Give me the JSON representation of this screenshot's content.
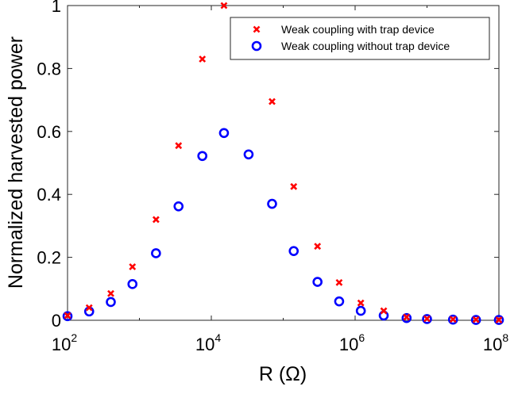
{
  "chart_data": {
    "type": "scatter",
    "xscale": "log",
    "xlim": [
      100,
      100000000
    ],
    "ylim": [
      0,
      1
    ],
    "xlabel": "R (Ω)",
    "ylabel": "Normalized harvested power",
    "xticks": [
      100,
      10000,
      1000000,
      100000000
    ],
    "xtick_labels": [
      {
        "base": "10",
        "exp": "2"
      },
      {
        "base": "10",
        "exp": "4"
      },
      {
        "base": "10",
        "exp": "6"
      },
      {
        "base": "10",
        "exp": "8"
      }
    ],
    "yticks": [
      0,
      0.2,
      0.4,
      0.6,
      0.8,
      1
    ],
    "ytick_labels": [
      "0",
      "0.2",
      "0.4",
      "0.6",
      "0.8",
      "1"
    ],
    "grid": false,
    "legend_position": "top-right",
    "series": [
      {
        "name": "Weak coupling with trap device",
        "marker": "x",
        "color": "#ff0000",
        "x": [
          100,
          200,
          400,
          800,
          1700,
          3500,
          7500,
          15000,
          70000,
          140000,
          300000,
          600000,
          1200000,
          2500000,
          5200000,
          10000000,
          23000000,
          48000000,
          100000000
        ],
        "y": [
          0.015,
          0.04,
          0.085,
          0.17,
          0.32,
          0.555,
          0.83,
          1.0,
          0.695,
          0.425,
          0.235,
          0.12,
          0.055,
          0.03,
          0.01,
          0.005,
          0.003,
          0.002,
          0.001
        ]
      },
      {
        "name": "Weak coupling without trap device",
        "marker": "o",
        "color": "#0000ff",
        "x": [
          100,
          200,
          400,
          800,
          1700,
          3500,
          7500,
          15000,
          33000,
          70000,
          140000,
          300000,
          600000,
          1200000,
          2500000,
          5200000,
          10000000,
          23000000,
          48000000,
          100000000
        ],
        "y": [
          0.013,
          0.028,
          0.058,
          0.115,
          0.213,
          0.362,
          0.522,
          0.595,
          0.527,
          0.37,
          0.22,
          0.122,
          0.06,
          0.03,
          0.015,
          0.007,
          0.004,
          0.002,
          0.001,
          0.001
        ]
      }
    ]
  }
}
